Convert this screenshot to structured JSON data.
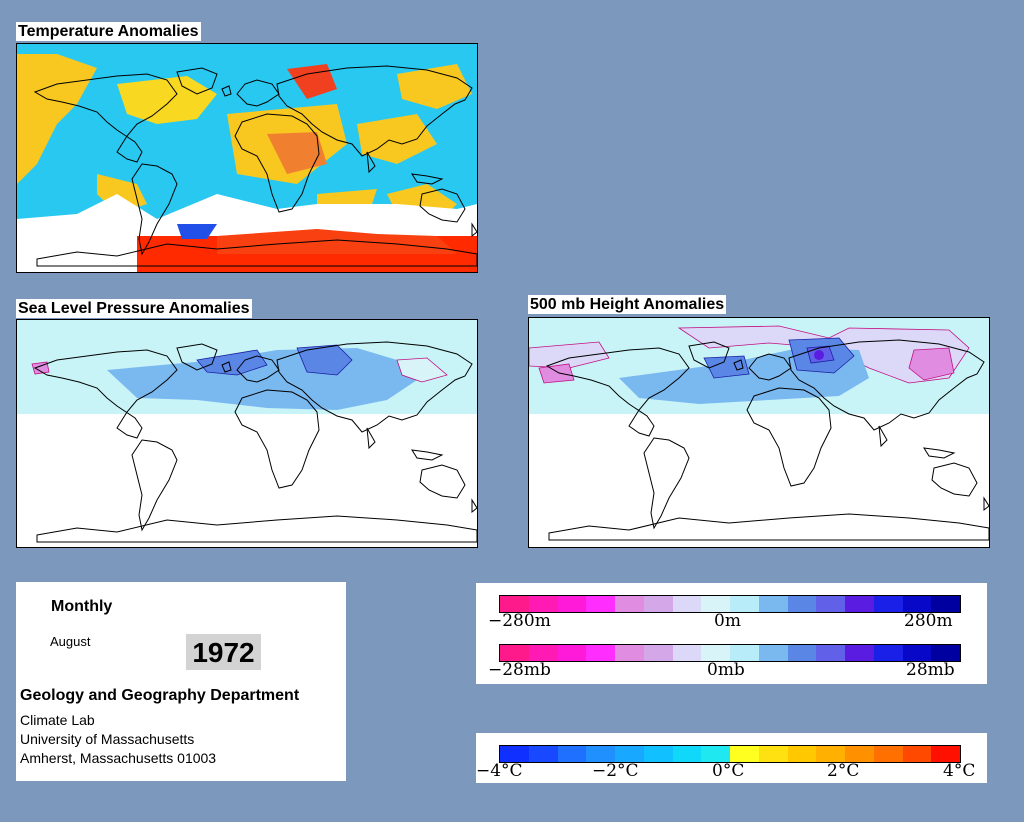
{
  "panels": {
    "temperature": {
      "title": "Temperature Anomalies"
    },
    "slp": {
      "title": "Sea Level Pressure Anomalies"
    },
    "height500": {
      "title": "500 mb Height Anomalies"
    }
  },
  "info": {
    "period": "Monthly",
    "month": "August",
    "year": "1972",
    "department": "Geology and Geography Department",
    "lab": "Climate Lab",
    "university": "University of Massachusetts",
    "address": "Amherst, Massachusetts 01003"
  },
  "legend_height_pressure": {
    "colors": [
      "#ff1a8c",
      "#ff1ab4",
      "#ff1ad9",
      "#ff2eff",
      "#e08ce0",
      "#d4a8e8",
      "#dcd8f8",
      "#d8f4f8",
      "#b8ecf8",
      "#7ab8f0",
      "#5a86e6",
      "#6060e8",
      "#5a1ce0",
      "#1a20e8",
      "#0808c8",
      "#0000a0"
    ],
    "height_labels": {
      "min": "−280m",
      "mid": "0m",
      "max": "280m"
    },
    "pressure_labels": {
      "min": "−28mb",
      "mid": "0mb",
      "max": "28mb"
    }
  },
  "legend_temperature": {
    "colors": [
      "#1030ff",
      "#1848ff",
      "#2070ff",
      "#2090ff",
      "#18a8ff",
      "#10c0ff",
      "#10d8f8",
      "#20e8f0",
      "#ffff20",
      "#ffe010",
      "#ffc800",
      "#ffb000",
      "#ff9000",
      "#ff7000",
      "#ff4800",
      "#ff1000"
    ],
    "labels": [
      "−4°C",
      "−2°C",
      "0°C",
      "2°C",
      "4°C"
    ]
  }
}
